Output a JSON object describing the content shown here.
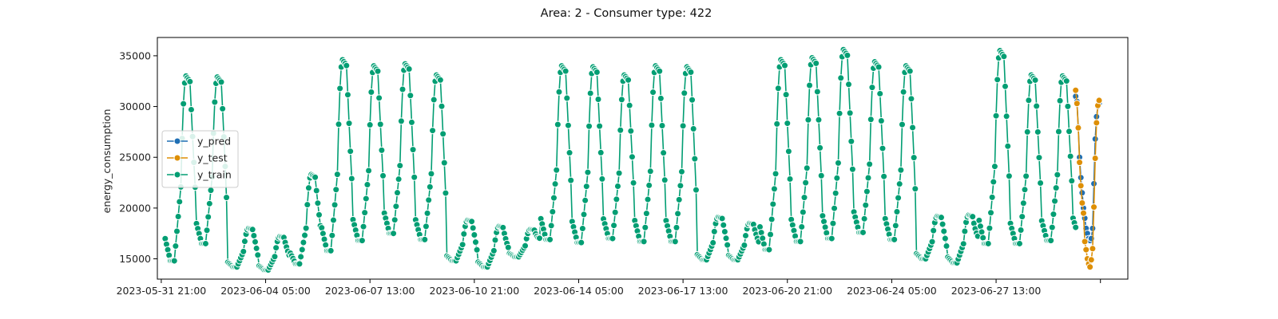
{
  "chart_data": {
    "type": "line",
    "title": "Area: 2 - Consumer type: 422",
    "xlabel": "",
    "ylabel": "energy_consumption",
    "x_axis_type": "datetime",
    "x_tick_labels": [
      "2023-05-31 21:00",
      "2023-06-04 05:00",
      "2023-06-07 13:00",
      "2023-06-10 21:00",
      "2023-06-14 05:00",
      "2023-06-17 13:00",
      "2023-06-20 21:00",
      "2023-06-24 05:00",
      "2023-06-27 13:00"
    ],
    "xlim": [
      "2023-05-31 18:00",
      "2023-07-01 18:00"
    ],
    "y_ticks": [
      15000,
      20000,
      25000,
      30000,
      35000
    ],
    "ylim": [
      13000,
      36800
    ],
    "grid": false,
    "legend_position": "center-left",
    "series": [
      {
        "name": "y_pred",
        "color": "#1f6fb4",
        "points": [
          [
            "2023-06-30 02:00",
            31000
          ],
          [
            "2023-06-30 03:00",
            30500
          ],
          [
            "2023-06-30 04:00",
            28000
          ],
          [
            "2023-06-30 05:00",
            25000
          ],
          [
            "2023-06-30 06:00",
            23000
          ],
          [
            "2023-06-30 07:00",
            21500
          ],
          [
            "2023-06-30 08:00",
            20000
          ],
          [
            "2023-06-30 09:00",
            19000
          ],
          [
            "2023-06-30 10:00",
            18000
          ],
          [
            "2023-06-30 11:00",
            17500
          ],
          [
            "2023-06-30 12:00",
            17000
          ],
          [
            "2023-06-30 13:00",
            16800
          ],
          [
            "2023-06-30 14:00",
            17000
          ],
          [
            "2023-06-30 15:00",
            18000
          ],
          [
            "2023-06-30 16:00",
            22400
          ],
          [
            "2023-06-30 17:00",
            26800
          ],
          [
            "2023-06-30 18:00",
            29000
          ],
          [
            "2023-06-30 19:00",
            30000
          ],
          [
            "2023-06-30 20:00",
            30300
          ]
        ]
      },
      {
        "name": "y_test",
        "color": "#de8f05",
        "points": [
          [
            "2023-06-30 02:00",
            31600
          ],
          [
            "2023-06-30 03:00",
            30300
          ],
          [
            "2023-06-30 04:00",
            27900
          ],
          [
            "2023-06-30 05:00",
            24500
          ],
          [
            "2023-06-30 06:00",
            22200
          ],
          [
            "2023-06-30 07:00",
            20500
          ],
          [
            "2023-06-30 08:00",
            19500
          ],
          [
            "2023-06-30 09:00",
            16700
          ],
          [
            "2023-06-30 10:00",
            15900
          ],
          [
            "2023-06-30 11:00",
            15000
          ],
          [
            "2023-06-30 12:00",
            14500
          ],
          [
            "2023-06-30 13:00",
            14200
          ],
          [
            "2023-06-30 14:00",
            14900
          ],
          [
            "2023-06-30 15:00",
            16000
          ],
          [
            "2023-06-30 16:00",
            20100
          ],
          [
            "2023-06-30 17:00",
            24900
          ],
          [
            "2023-06-30 18:00",
            28400
          ],
          [
            "2023-06-30 19:00",
            30100
          ],
          [
            "2023-06-30 20:00",
            30600
          ]
        ]
      },
      {
        "name": "y_train",
        "color": "#029e73",
        "cycles": [
          {
            "date": "2023-06-01",
            "min": 14800,
            "max": 33000
          },
          {
            "date": "2023-06-02",
            "min": 16500,
            "max": 32900
          },
          {
            "date": "2023-06-03",
            "min": 14200,
            "max": 18000
          },
          {
            "date": "2023-06-04",
            "min": 13900,
            "max": 17200
          },
          {
            "date": "2023-06-05",
            "min": 14500,
            "max": 23300
          },
          {
            "date": "2023-06-06",
            "min": 15800,
            "max": 34600
          },
          {
            "date": "2023-06-07",
            "min": 16800,
            "max": 34000
          },
          {
            "date": "2023-06-08",
            "min": 17500,
            "max": 34200
          },
          {
            "date": "2023-06-09",
            "min": 16900,
            "max": 33100
          },
          {
            "date": "2023-06-10",
            "min": 14800,
            "max": 18800
          },
          {
            "date": "2023-06-11",
            "min": 14200,
            "max": 18200
          },
          {
            "date": "2023-06-12",
            "min": 15200,
            "max": 17900
          },
          {
            "date": "2023-06-13",
            "min": 16900,
            "max": 34000
          },
          {
            "date": "2023-06-14",
            "min": 16600,
            "max": 33900
          },
          {
            "date": "2023-06-15",
            "min": 17000,
            "max": 33100
          },
          {
            "date": "2023-06-16",
            "min": 16700,
            "max": 34000
          },
          {
            "date": "2023-06-17",
            "min": 16700,
            "max": 33900
          },
          {
            "date": "2023-06-18",
            "min": 14900,
            "max": 19100
          },
          {
            "date": "2023-06-19",
            "min": 14900,
            "max": 18500
          },
          {
            "date": "2023-06-20",
            "min": 15900,
            "max": 34600
          },
          {
            "date": "2023-06-21",
            "min": 16700,
            "max": 34800
          },
          {
            "date": "2023-06-22",
            "min": 17000,
            "max": 35600
          },
          {
            "date": "2023-06-23",
            "min": 17600,
            "max": 34400
          },
          {
            "date": "2023-06-24",
            "min": 16900,
            "max": 34000
          },
          {
            "date": "2023-06-25",
            "min": 15000,
            "max": 19200
          },
          {
            "date": "2023-06-26",
            "min": 14600,
            "max": 19300
          },
          {
            "date": "2023-06-27",
            "min": 16500,
            "max": 35500
          },
          {
            "date": "2023-06-28",
            "min": 16500,
            "max": 33100
          },
          {
            "date": "2023-06-29",
            "min": 16800,
            "max": 33000
          },
          {
            "date": "2023-06-30",
            "min": 17200,
            "max": 32200
          }
        ]
      }
    ]
  }
}
